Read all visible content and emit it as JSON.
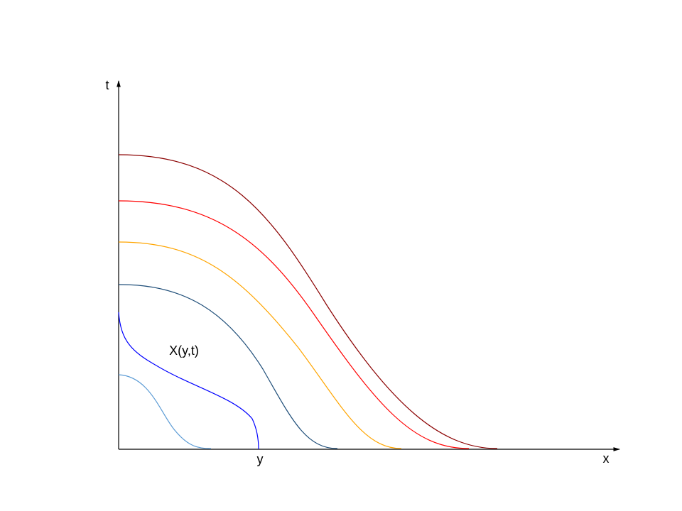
{
  "axes": {
    "vertical_label": "t",
    "horizontal_label": "x",
    "point_label": "y"
  },
  "curve_label": "X(y,t)"
}
